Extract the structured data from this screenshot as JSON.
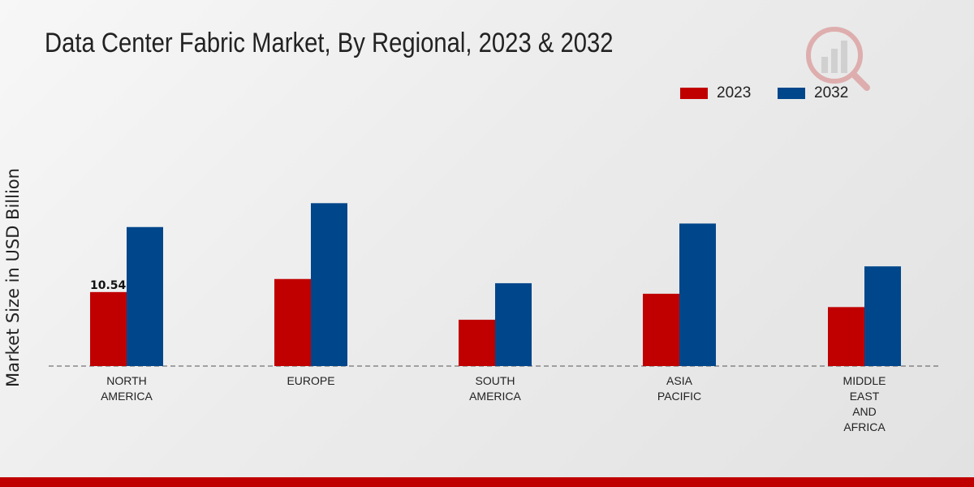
{
  "chart_data": {
    "type": "bar",
    "title": "Data Center Fabric Market, By Regional, 2023 & 2032",
    "xlabel": "",
    "ylabel": "Market Size in USD Billion",
    "categories": [
      [
        "NORTH",
        "AMERICA"
      ],
      [
        "EUROPE"
      ],
      [
        "SOUTH",
        "AMERICA"
      ],
      [
        "ASIA",
        "PACIFIC"
      ],
      [
        "MIDDLE",
        "EAST",
        "AND",
        "AFRICA"
      ]
    ],
    "series": [
      {
        "name": "2023",
        "color": "#c00000",
        "values": [
          10.54,
          12.4,
          6.6,
          10.3,
          8.4
        ]
      },
      {
        "name": "2032",
        "color": "#00468b",
        "values": [
          19.8,
          23.2,
          11.8,
          20.3,
          14.2
        ]
      }
    ],
    "data_labels": [
      {
        "series": 0,
        "category": 0,
        "text": "10.54"
      }
    ],
    "ylim": [
      0,
      40
    ],
    "grid": false,
    "legend_position": "top-right"
  }
}
